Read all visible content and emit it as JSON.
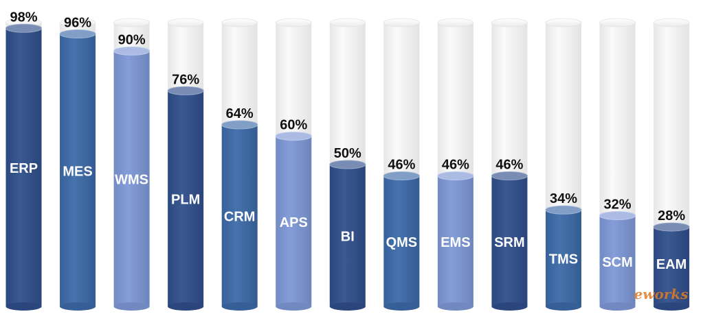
{
  "chart_data": {
    "type": "bar",
    "categories": [
      "ERP",
      "MES",
      "WMS",
      "PLM",
      "CRM",
      "APS",
      "BI",
      "QMS",
      "EMS",
      "SRM",
      "TMS",
      "SCM",
      "EAM"
    ],
    "values": [
      98,
      96,
      90,
      76,
      64,
      60,
      50,
      46,
      46,
      46,
      34,
      32,
      28
    ],
    "value_labels": [
      "98%",
      "96%",
      "90%",
      "76%",
      "64%",
      "60%",
      "50%",
      "46%",
      "46%",
      "46%",
      "34%",
      "32%",
      "28%"
    ],
    "ylim": [
      0,
      100
    ],
    "grid": false,
    "legend": "none",
    "style": "3d-cylinder",
    "colors": [
      "#2f4e8b",
      "#3b69a7",
      "#7d97d6",
      "#2f4e8b",
      "#3b69a7",
      "#7d97d6",
      "#2f4e8b",
      "#3b69a7",
      "#7d97d6",
      "#2f4e8b",
      "#3b69a7",
      "#7d97d6",
      "#2f4e8b"
    ],
    "background_cylinder_color": "#f1f1f1"
  },
  "watermark": {
    "text": "eworks",
    "color": "#e07b22"
  }
}
